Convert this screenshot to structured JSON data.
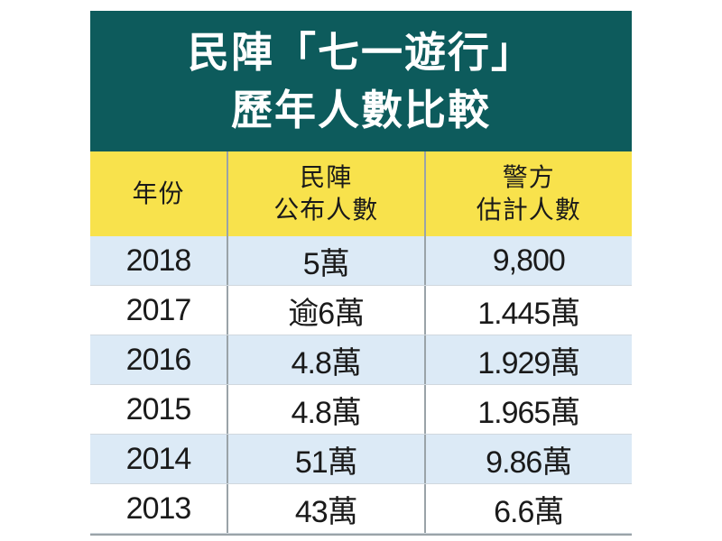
{
  "header": {
    "title": [
      "民陣「七一遊行」",
      "歷年人數比較"
    ]
  },
  "table": {
    "columns": [
      [
        "年份"
      ],
      [
        "民陣",
        "公布人數"
      ],
      [
        "警方",
        "估計人數"
      ]
    ],
    "rows": [
      [
        "2018",
        "5萬",
        "9,800"
      ],
      [
        "2017",
        "逾6萬",
        "1.445萬"
      ],
      [
        "2016",
        "4.8萬",
        "1.929萬"
      ],
      [
        "2015",
        "4.8萬",
        "1.965萬"
      ],
      [
        "2014",
        "51萬",
        "9.86萬"
      ],
      [
        "2013",
        "43萬",
        "6.6萬"
      ]
    ]
  }
}
